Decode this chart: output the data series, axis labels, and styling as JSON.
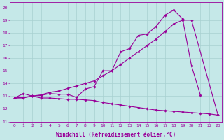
{
  "xlabel": "Windchill (Refroidissement éolien,°C)",
  "bg_color": "#c5e8e8",
  "grid_color": "#a8d0d0",
  "line_color": "#990099",
  "xlim": [
    -0.5,
    23.4
  ],
  "ylim": [
    11.0,
    20.4
  ],
  "xticks": [
    0,
    1,
    2,
    3,
    4,
    5,
    6,
    7,
    8,
    9,
    10,
    11,
    12,
    13,
    14,
    15,
    16,
    17,
    18,
    19,
    20,
    21,
    22,
    23
  ],
  "yticks": [
    11,
    12,
    13,
    14,
    15,
    16,
    17,
    18,
    19,
    20
  ],
  "line1_x": [
    0,
    1,
    2,
    3,
    4,
    5,
    6,
    7,
    8,
    9,
    10,
    11,
    12,
    13,
    14,
    15,
    16,
    17,
    18,
    19,
    20,
    21
  ],
  "line1_y": [
    12.85,
    13.2,
    13.0,
    13.05,
    13.2,
    13.15,
    13.15,
    12.9,
    13.55,
    13.75,
    15.0,
    15.0,
    16.5,
    16.75,
    17.8,
    17.9,
    18.5,
    19.4,
    19.8,
    19.1,
    15.4,
    13.1
  ],
  "line2_x": [
    0,
    1,
    2,
    3,
    4,
    5,
    6,
    7,
    8,
    9,
    10,
    11,
    12,
    13,
    14,
    15,
    16,
    17,
    18,
    19,
    20,
    23
  ],
  "line2_y": [
    12.85,
    12.9,
    13.0,
    13.1,
    13.3,
    13.4,
    13.6,
    13.8,
    14.0,
    14.2,
    14.6,
    15.0,
    15.5,
    16.0,
    16.5,
    17.0,
    17.5,
    18.1,
    18.7,
    19.0,
    19.0,
    11.5
  ],
  "line3_x": [
    0,
    1,
    2,
    3,
    4,
    5,
    6,
    7,
    8,
    9,
    10,
    11,
    12,
    13,
    14,
    15,
    16,
    17,
    18,
    19,
    20,
    21,
    22,
    23
  ],
  "line3_y": [
    12.85,
    12.85,
    13.0,
    12.85,
    12.85,
    12.8,
    12.75,
    12.75,
    12.7,
    12.65,
    12.5,
    12.4,
    12.3,
    12.2,
    12.1,
    12.0,
    11.9,
    11.85,
    11.8,
    11.75,
    11.7,
    11.65,
    11.6,
    11.5
  ],
  "markersize": 1.8,
  "linewidth": 0.8,
  "tick_fontsize": 4.5,
  "label_fontsize": 5.5
}
